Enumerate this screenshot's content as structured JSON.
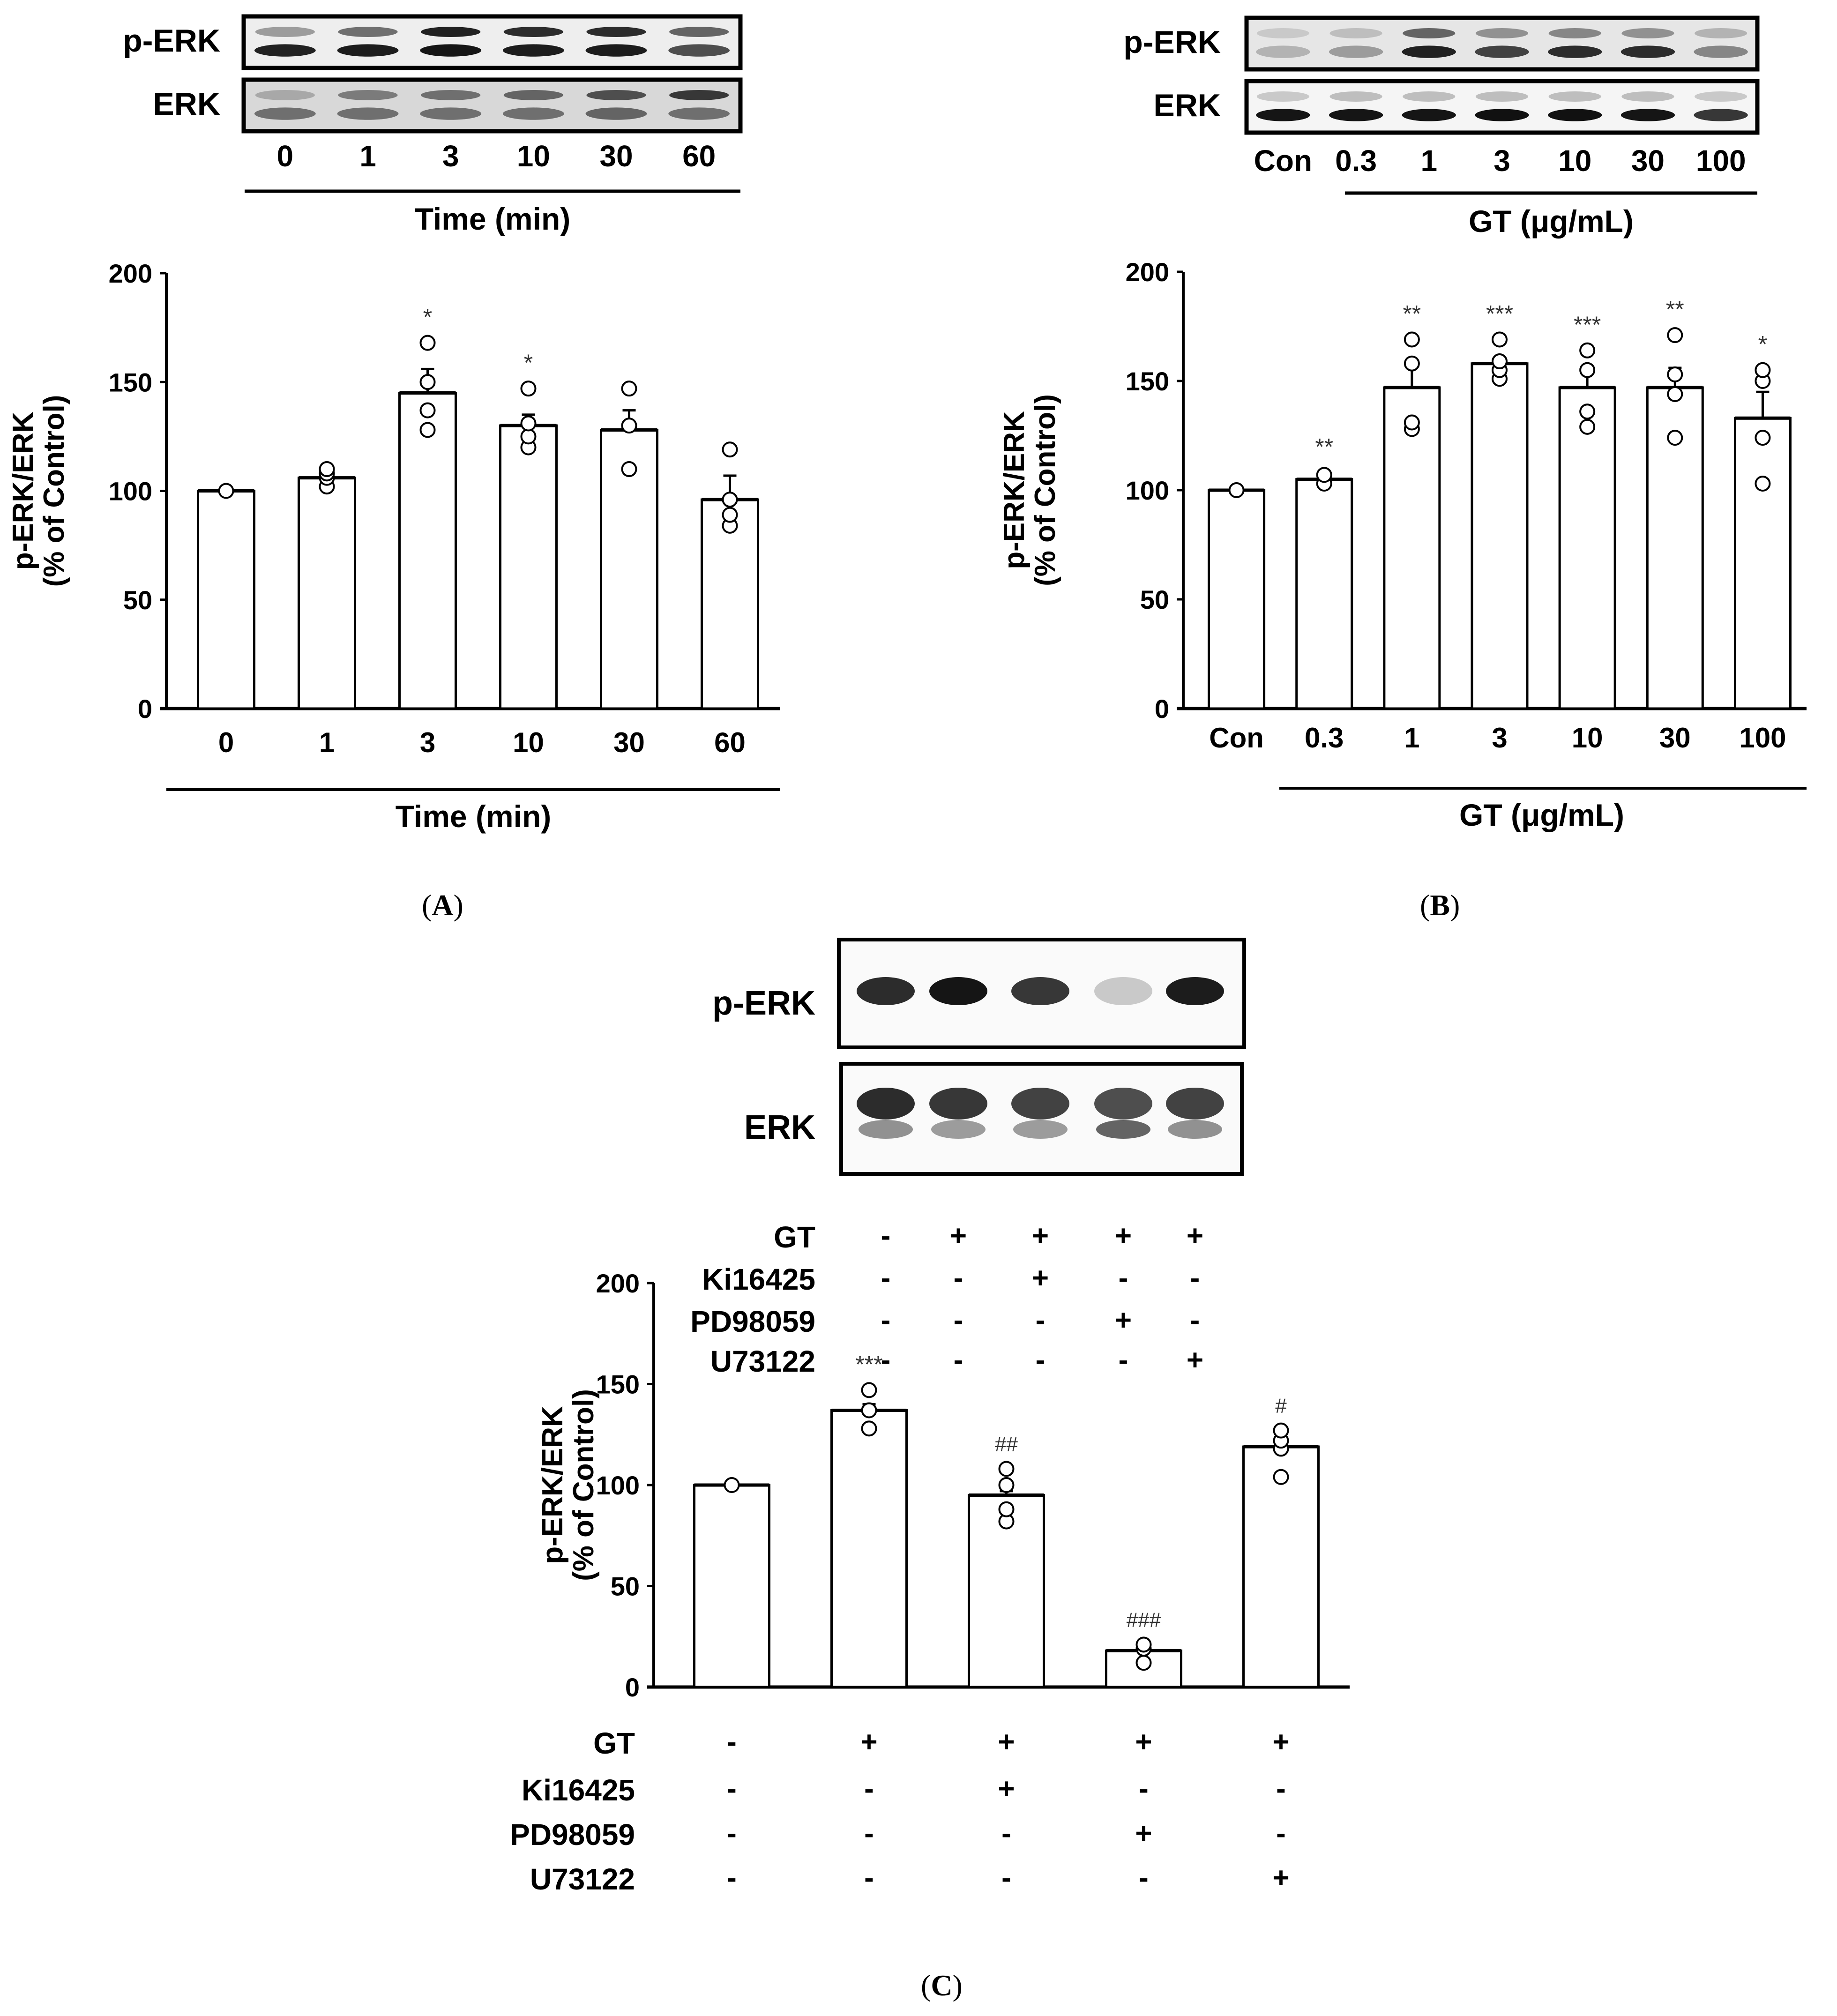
{
  "figure": {
    "captions": {
      "A": "A",
      "B": "B",
      "C": "C"
    }
  },
  "panel_A": {
    "blot": {
      "rows": [
        "p-ERK",
        "ERK"
      ],
      "lane_labels": [
        "0",
        "1",
        "3",
        "10",
        "30",
        "60"
      ],
      "group_label": "Time (min)",
      "band_intensity": {
        "p-ERK_upper": [
          0.35,
          0.55,
          0.9,
          0.85,
          0.85,
          0.6
        ],
        "p-ERK_lower": [
          0.9,
          0.92,
          0.95,
          0.92,
          0.92,
          0.7
        ],
        "ERK_upper": [
          0.3,
          0.5,
          0.55,
          0.6,
          0.7,
          0.8
        ],
        "ERK_lower": [
          0.55,
          0.55,
          0.55,
          0.55,
          0.6,
          0.55
        ]
      }
    }
  },
  "panel_B": {
    "blot": {
      "rows": [
        "p-ERK",
        "ERK"
      ],
      "lane_labels": [
        "Con",
        "0.3",
        "1",
        "3",
        "10",
        "30",
        "100"
      ],
      "group_label": "GT (μg/mL)",
      "band_intensity": {
        "p-ERK_upper": [
          0.15,
          0.2,
          0.6,
          0.4,
          0.45,
          0.4,
          0.25
        ],
        "p-ERK_lower": [
          0.25,
          0.35,
          0.9,
          0.75,
          0.85,
          0.85,
          0.45
        ],
        "ERK_upper": [
          0.15,
          0.2,
          0.2,
          0.2,
          0.2,
          0.2,
          0.15
        ],
        "ERK_lower": [
          0.95,
          0.95,
          0.95,
          0.97,
          0.97,
          0.95,
          0.8
        ]
      }
    }
  },
  "panel_C": {
    "blot": {
      "rows": [
        "p-ERK",
        "ERK"
      ],
      "band_intensity": {
        "p-ERK": [
          0.85,
          0.95,
          0.8,
          0.15,
          0.92
        ],
        "ERK_upper": [
          0.85,
          0.8,
          0.75,
          0.7,
          0.75
        ],
        "ERK_lower": [
          0.4,
          0.35,
          0.35,
          0.6,
          0.4
        ]
      }
    },
    "treatment_table": {
      "rows": [
        {
          "label": "GT",
          "values": [
            "-",
            "+",
            "+",
            "+",
            "+"
          ]
        },
        {
          "label": "Ki16425",
          "values": [
            "-",
            "-",
            "+",
            "-",
            "-"
          ]
        },
        {
          "label": "PD98059",
          "values": [
            "-",
            "-",
            "-",
            "+",
            "-"
          ]
        },
        {
          "label": "U73122",
          "values": [
            "-",
            "-",
            "-",
            "-",
            "+"
          ]
        }
      ]
    }
  },
  "chart_data": [
    {
      "id": "A",
      "type": "bar",
      "title": "",
      "xlabel": "Time (min)",
      "ylabel": "p-ERK/ERK\n(% of Control)",
      "ylim": [
        0,
        200
      ],
      "yticks": [
        0,
        50,
        100,
        150,
        200
      ],
      "grid": false,
      "categories": [
        "0",
        "1",
        "3",
        "10",
        "30",
        "60"
      ],
      "values": [
        100,
        106,
        145,
        130,
        128,
        96
      ],
      "error_plus": [
        0,
        0,
        11,
        5,
        9,
        11
      ],
      "points": [
        [
          100
        ],
        [
          102,
          106,
          108,
          110
        ],
        [
          128,
          137,
          150,
          168
        ],
        [
          120,
          125,
          131,
          147
        ],
        [
          110,
          130,
          147
        ],
        [
          84,
          89,
          96,
          119
        ]
      ],
      "annotations": [
        "",
        "",
        "*",
        "*",
        "",
        ""
      ]
    },
    {
      "id": "B",
      "type": "bar",
      "title": "",
      "xlabel": "GT (μg/mL)",
      "ylabel": "p-ERK/ERK\n(% of Control)",
      "ylim": [
        0,
        200
      ],
      "yticks": [
        0,
        50,
        100,
        150,
        200
      ],
      "grid": false,
      "categories": [
        "Con",
        "0.3",
        "1",
        "3",
        "10",
        "30",
        "100"
      ],
      "values": [
        100,
        105,
        147,
        158,
        147,
        147,
        133
      ],
      "error_plus": [
        0,
        3,
        11,
        2,
        9,
        9,
        12
      ],
      "points": [
        [
          100
        ],
        [
          103,
          107
        ],
        [
          128,
          131,
          158,
          169
        ],
        [
          151,
          155,
          159,
          169
        ],
        [
          129,
          136,
          155,
          164
        ],
        [
          124,
          144,
          153,
          171
        ],
        [
          103,
          124,
          150,
          155
        ]
      ],
      "annotations": [
        "",
        "**",
        "**",
        "***",
        "***",
        "**",
        "*"
      ]
    },
    {
      "id": "C",
      "type": "bar",
      "title": "",
      "xlabel": "",
      "ylabel": "p-ERK/ERK\n(% of Control)",
      "ylim": [
        0,
        200
      ],
      "yticks": [
        0,
        50,
        100,
        150,
        200
      ],
      "grid": false,
      "categories": [
        "Con",
        "GT",
        "GT+Ki16425",
        "GT+PD98059",
        "GT+U73122"
      ],
      "values": [
        100,
        137,
        95,
        18,
        119
      ],
      "error_plus": [
        0,
        3,
        2,
        0,
        0
      ],
      "points": [
        [
          100
        ],
        [
          128,
          137,
          147
        ],
        [
          82,
          88,
          100,
          108
        ],
        [
          12,
          19,
          21
        ],
        [
          104,
          118,
          122,
          127
        ]
      ],
      "annotations": [
        "",
        "***",
        "##",
        "###",
        "#"
      ]
    }
  ]
}
